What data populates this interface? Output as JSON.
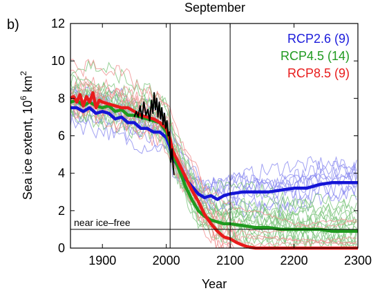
{
  "panel_label": "b)",
  "chart_data": {
    "type": "line",
    "title": "September",
    "xlabel": "Year",
    "ylabel": "Sea ice extent, 10",
    "ylabel_sup": "6",
    "ylabel_unit": " km",
    "ylabel_unit_sup": "2",
    "xlim": [
      1850,
      2300
    ],
    "ylim": [
      0,
      12
    ],
    "xticks": [
      1900,
      2000,
      2100,
      2200,
      2300
    ],
    "yticks": [
      0,
      2,
      4,
      6,
      8,
      10,
      12
    ],
    "grid": false,
    "legend_position": "top-right",
    "legend": [
      {
        "label": "RCP2.6 (9)",
        "color": "#1a1adb"
      },
      {
        "label": "RCP4.5 (14)",
        "color": "#1f9a1f"
      },
      {
        "label": "RCP8.5 (9)",
        "color": "#e81b1b"
      }
    ],
    "vertical_lines": [
      2006,
      2100
    ],
    "reference_line": {
      "y": 1.0,
      "label": "near ice–free"
    },
    "series": [
      {
        "name": "RCP2.6 (9)",
        "color": "#1414d6",
        "x": [
          1850,
          1860,
          1870,
          1880,
          1890,
          1900,
          1910,
          1920,
          1930,
          1940,
          1950,
          1960,
          1970,
          1980,
          1990,
          2000,
          2006,
          2010,
          2020,
          2030,
          2040,
          2050,
          2060,
          2070,
          2080,
          2090,
          2100,
          2120,
          2140,
          2160,
          2180,
          2200,
          2220,
          2240,
          2260,
          2280,
          2300
        ],
        "y": [
          7.5,
          7.5,
          7.3,
          7.5,
          7.2,
          7.3,
          7.2,
          6.9,
          7.0,
          6.7,
          6.7,
          6.4,
          6.4,
          6.2,
          6.2,
          5.9,
          5.4,
          4.8,
          4.3,
          3.7,
          3.3,
          2.9,
          2.7,
          2.8,
          2.6,
          2.8,
          2.9,
          3.0,
          3.0,
          3.0,
          3.1,
          3.2,
          3.2,
          3.4,
          3.5,
          3.5,
          3.5
        ]
      },
      {
        "name": "RCP4.5 (14)",
        "color": "#1f9a1f",
        "x": [
          1850,
          1860,
          1870,
          1880,
          1890,
          1900,
          1910,
          1920,
          1930,
          1940,
          1950,
          1960,
          1970,
          1980,
          1990,
          2000,
          2006,
          2010,
          2020,
          2030,
          2040,
          2050,
          2060,
          2070,
          2080,
          2090,
          2100,
          2120,
          2140,
          2160,
          2180,
          2200,
          2220,
          2240,
          2260,
          2280,
          2300
        ],
        "y": [
          7.8,
          7.9,
          7.6,
          7.8,
          7.6,
          7.5,
          7.6,
          7.3,
          7.4,
          7.1,
          7.1,
          7.0,
          6.9,
          6.8,
          6.7,
          6.2,
          5.6,
          5.0,
          4.2,
          3.3,
          2.6,
          2.0,
          1.7,
          1.5,
          1.4,
          1.3,
          1.3,
          1.2,
          1.1,
          1.1,
          1.0,
          1.0,
          1.0,
          1.0,
          0.9,
          0.9,
          0.9
        ]
      },
      {
        "name": "RCP8.5 (9)",
        "color": "#e81b1b",
        "x": [
          1850,
          1855,
          1860,
          1865,
          1870,
          1875,
          1880,
          1885,
          1890,
          1895,
          1900,
          1910,
          1920,
          1930,
          1940,
          1950,
          1960,
          1970,
          1980,
          1990,
          2000,
          2006,
          2010,
          2020,
          2030,
          2040,
          2050,
          2060,
          2070,
          2080,
          2090,
          2100,
          2110,
          2120,
          2130,
          2140,
          2160,
          2200,
          2250,
          2300
        ],
        "y": [
          8.0,
          8.1,
          7.8,
          8.2,
          7.6,
          8.1,
          7.8,
          8.3,
          7.5,
          7.9,
          7.8,
          7.7,
          7.6,
          7.5,
          7.5,
          7.3,
          7.1,
          7.0,
          6.9,
          6.7,
          6.4,
          5.8,
          5.2,
          4.5,
          3.8,
          3.1,
          2.5,
          1.8,
          1.3,
          0.9,
          0.6,
          0.5,
          0.3,
          0.15,
          0.05,
          0.0,
          0.0,
          0.0,
          0.0,
          0.0
        ]
      },
      {
        "name": "",
        "color": "#000000",
        "x": [
          1950,
          1953,
          1956,
          1959,
          1962,
          1965,
          1968,
          1971,
          1974,
          1977,
          1979,
          1981,
          1983,
          1985,
          1987,
          1989,
          1991,
          1993,
          1995,
          1997,
          1999,
          2001,
          2003,
          2005,
          2007,
          2009,
          2011,
          2012
        ],
        "y": [
          7.0,
          7.3,
          7.0,
          7.6,
          6.9,
          7.8,
          7.1,
          7.4,
          6.8,
          7.9,
          7.2,
          8.3,
          7.4,
          8.0,
          7.0,
          7.8,
          6.9,
          7.5,
          6.6,
          7.2,
          6.4,
          6.8,
          6.0,
          6.2,
          4.6,
          5.3,
          4.3,
          3.9
        ]
      }
    ]
  }
}
